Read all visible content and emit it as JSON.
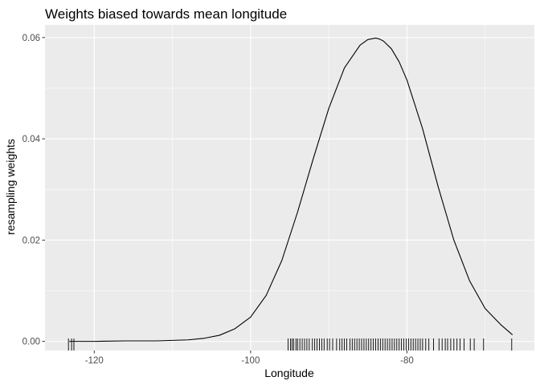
{
  "chart_data": {
    "type": "line",
    "title": "Weights biased towards mean longitude",
    "xlabel": "Longitude",
    "ylabel": "resampling weights",
    "xlim": [
      -126.3,
      -63.7
    ],
    "ylim": [
      -0.0018,
      0.0625
    ],
    "x_ticks": [
      -120,
      -100,
      -80
    ],
    "x_tick_labels": [
      "-120",
      "-100",
      "-80"
    ],
    "y_ticks": [
      0,
      0.02,
      0.04,
      0.06
    ],
    "y_tick_labels": [
      "0.00",
      "0.02",
      "0.04",
      "0.06"
    ],
    "grid": true,
    "legend": "none",
    "colors": {
      "panel": "#ebebeb",
      "grid": "#ffffff",
      "line": "#000000",
      "rug": "#000000",
      "tick_text": "#4d4d4d"
    },
    "series": [
      {
        "x": [
          -123.2,
          -120,
          -116,
          -112,
          -110,
          -108,
          -106,
          -104,
          -102,
          -100,
          -98,
          -96,
          -94,
          -92,
          -90,
          -88,
          -86,
          -85,
          -84,
          -83.5,
          -83,
          -82,
          -81,
          -80,
          -78,
          -76,
          -74,
          -72,
          -70,
          -68,
          -66.5
        ],
        "values": [
          0,
          0,
          0.0001,
          0.0001,
          0.0002,
          0.0003,
          0.0006,
          0.0012,
          0.0025,
          0.0048,
          0.0091,
          0.016,
          0.0255,
          0.036,
          0.046,
          0.054,
          0.0585,
          0.0596,
          0.0599,
          0.0597,
          0.0593,
          0.0578,
          0.0552,
          0.0516,
          0.042,
          0.0305,
          0.02,
          0.012,
          0.0065,
          0.0033,
          0.0013
        ]
      }
    ],
    "rug_x": [
      -123.3,
      -122.9,
      -122.6,
      -95.2,
      -94.9,
      -94.7,
      -94.5,
      -94.2,
      -94.0,
      -93.7,
      -93.4,
      -93.1,
      -92.8,
      -92.5,
      -92.1,
      -91.8,
      -91.5,
      -91.2,
      -90.9,
      -90.6,
      -90.2,
      -89.9,
      -89.5,
      -89.0,
      -88.6,
      -88.3,
      -88.0,
      -87.7,
      -87.3,
      -87.0,
      -86.7,
      -86.4,
      -86.1,
      -85.8,
      -85.5,
      -85.2,
      -84.9,
      -84.6,
      -84.3,
      -84.0,
      -83.7,
      -83.4,
      -83.1,
      -82.8,
      -82.5,
      -82.2,
      -81.9,
      -81.6,
      -81.3,
      -81.0,
      -80.7,
      -80.4,
      -80.1,
      -79.8,
      -79.5,
      -79.2,
      -78.9,
      -78.6,
      -78.3,
      -78.0,
      -77.6,
      -77.2,
      -76.6,
      -75.9,
      -75.5,
      -75.1,
      -74.8,
      -74.4,
      -74.0,
      -73.6,
      -73.2,
      -72.7,
      -71.9,
      -71.4,
      -70.2,
      -66.6
    ]
  }
}
